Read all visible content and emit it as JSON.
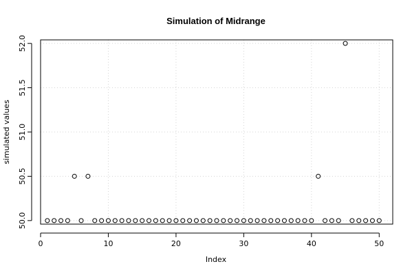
{
  "chart_data": {
    "type": "scatter",
    "title": "Simulation of Midrange",
    "xlabel": "Index",
    "ylabel": "simulated values",
    "xlim": [
      0,
      52
    ],
    "ylim": [
      49.96,
      52.04
    ],
    "x_ticks": [
      0,
      10,
      20,
      30,
      40,
      50
    ],
    "y_ticks": [
      50.0,
      50.5,
      51.0,
      51.5,
      52.0
    ],
    "x_tick_labels": [
      "0",
      "10",
      "20",
      "30",
      "40",
      "50"
    ],
    "y_tick_labels": [
      "50.0",
      "50.5",
      "51.0",
      "51.5",
      "52.0"
    ],
    "grid": true,
    "marker": "open-circle",
    "x": [
      1,
      2,
      3,
      4,
      5,
      6,
      7,
      8,
      9,
      10,
      11,
      12,
      13,
      14,
      15,
      16,
      17,
      18,
      19,
      20,
      21,
      22,
      23,
      24,
      25,
      26,
      27,
      28,
      29,
      30,
      31,
      32,
      33,
      34,
      35,
      36,
      37,
      38,
      39,
      40,
      41,
      42,
      43,
      44,
      45,
      46,
      47,
      48,
      49,
      50
    ],
    "values": [
      50,
      50,
      50,
      50,
      50.5,
      50,
      50.5,
      50,
      50,
      50,
      50,
      50,
      50,
      50,
      50,
      50,
      50,
      50,
      50,
      50,
      50,
      50,
      50,
      50,
      50,
      50,
      50,
      50,
      50,
      50,
      50,
      50,
      50,
      50,
      50,
      50,
      50,
      50,
      50,
      50,
      50.5,
      50,
      50,
      50,
      52,
      50,
      50,
      50,
      50,
      50
    ]
  }
}
